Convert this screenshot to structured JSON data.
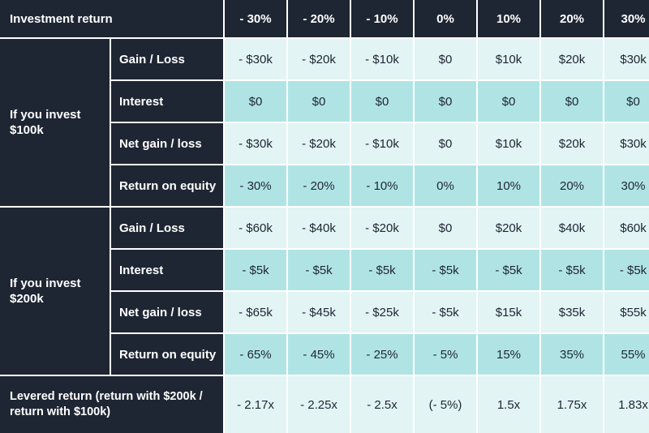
{
  "header": {
    "title": "Investment return",
    "scenarios": [
      "- 30%",
      "- 20%",
      "- 10%",
      "0%",
      "10%",
      "20%",
      "30%"
    ]
  },
  "groups": [
    {
      "label": "If you invest $100k",
      "rows": [
        {
          "label": "Gain / Loss",
          "values": [
            "- $30k",
            "- $20k",
            "- $10k",
            "$0",
            "$10k",
            "$20k",
            "$30k"
          ]
        },
        {
          "label": "Interest",
          "values": [
            "$0",
            "$0",
            "$0",
            "$0",
            "$0",
            "$0",
            "$0"
          ]
        },
        {
          "label": "Net gain / loss",
          "values": [
            "- $30k",
            "- $20k",
            "- $10k",
            "$0",
            "$10k",
            "$20k",
            "$30k"
          ]
        },
        {
          "label": "Return on equity",
          "values": [
            "- 30%",
            "- 20%",
            "- 10%",
            "0%",
            "10%",
            "20%",
            "30%"
          ]
        }
      ]
    },
    {
      "label": "If you invest $200k",
      "rows": [
        {
          "label": "Gain / Loss",
          "values": [
            "- $60k",
            "- $40k",
            "- $20k",
            "$0",
            "$20k",
            "$40k",
            "$60k"
          ]
        },
        {
          "label": "Interest",
          "values": [
            "- $5k",
            "- $5k",
            "- $5k",
            "- $5k",
            "- $5k",
            "- $5k",
            "- $5k"
          ]
        },
        {
          "label": "Net gain / loss",
          "values": [
            "- $65k",
            "- $45k",
            "- $25k",
            "- $5k",
            "$15k",
            "$35k",
            "$55k"
          ]
        },
        {
          "label": "Return on equity",
          "values": [
            "- 65%",
            "- 45%",
            "- 25%",
            "- 5%",
            "15%",
            "35%",
            "55%"
          ]
        }
      ]
    }
  ],
  "levered": {
    "label": "Levered return (return with $200k / return with $100k)",
    "values": [
      "- 2.17x",
      "- 2.25x",
      "- 2.5x",
      "(- 5%)",
      "1.5x",
      "1.75x",
      "1.83x"
    ]
  }
}
